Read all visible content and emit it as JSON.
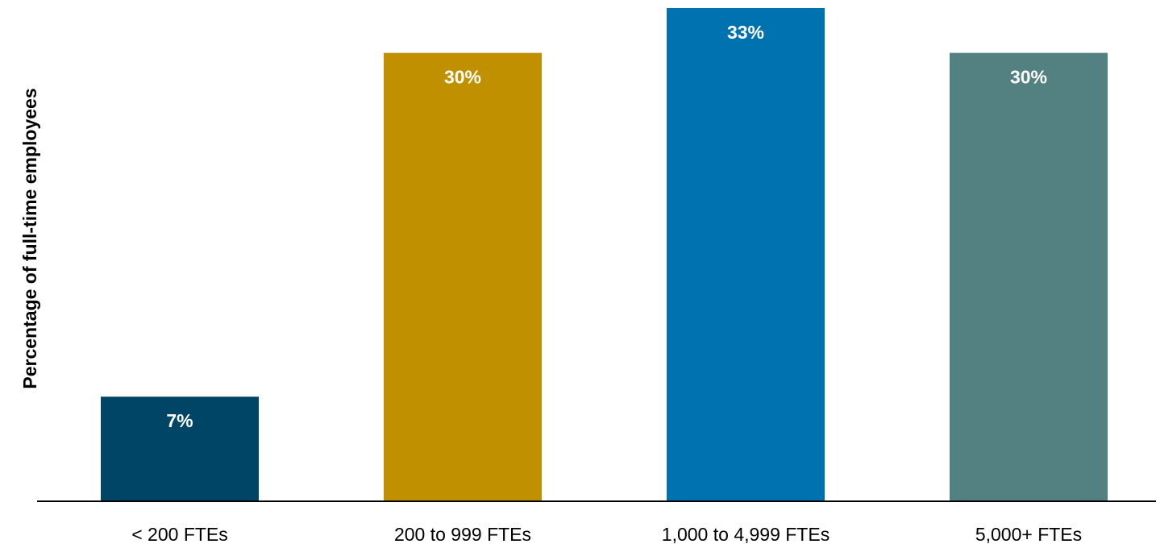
{
  "chart_data": {
    "type": "bar",
    "title": "",
    "xlabel": "",
    "ylabel": "Percentage of full-time employees",
    "categories": [
      "< 200 FTEs",
      "200 to 999 FTEs",
      "1,000 to 4,999 FTEs",
      "5,000+ FTEs"
    ],
    "values": [
      7,
      30,
      33,
      30
    ],
    "value_labels": [
      "7%",
      "30%",
      "33%",
      "30%"
    ],
    "colors": [
      "#004466",
      "#C09000",
      "#0072AF",
      "#538182"
    ],
    "label_color": "#FFFFFF",
    "axis_color": "#000000",
    "ylim": [
      0,
      33
    ],
    "grid": false,
    "legend": "none"
  }
}
